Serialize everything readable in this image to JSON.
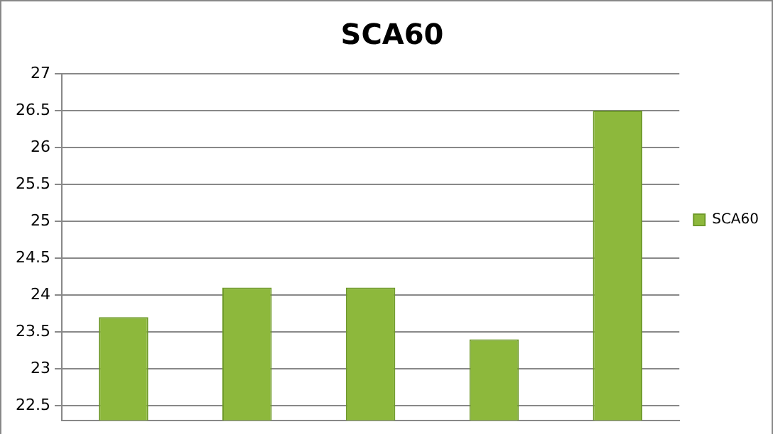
{
  "chart_data": {
    "type": "bar",
    "title": "SCA60",
    "categories": [
      null,
      null,
      null,
      null,
      null
    ],
    "series": [
      {
        "name": "SCA60",
        "color": "#8db83c",
        "values": [
          23.7,
          24.1,
          24.1,
          23.4,
          26.5
        ]
      }
    ],
    "ylim": [
      22.3,
      27
    ],
    "yticks": [
      22.5,
      23,
      23.5,
      24,
      24.5,
      25,
      25.5,
      26,
      26.5,
      27
    ],
    "grid": "y",
    "legend": "right",
    "tick_labels": "y"
  }
}
